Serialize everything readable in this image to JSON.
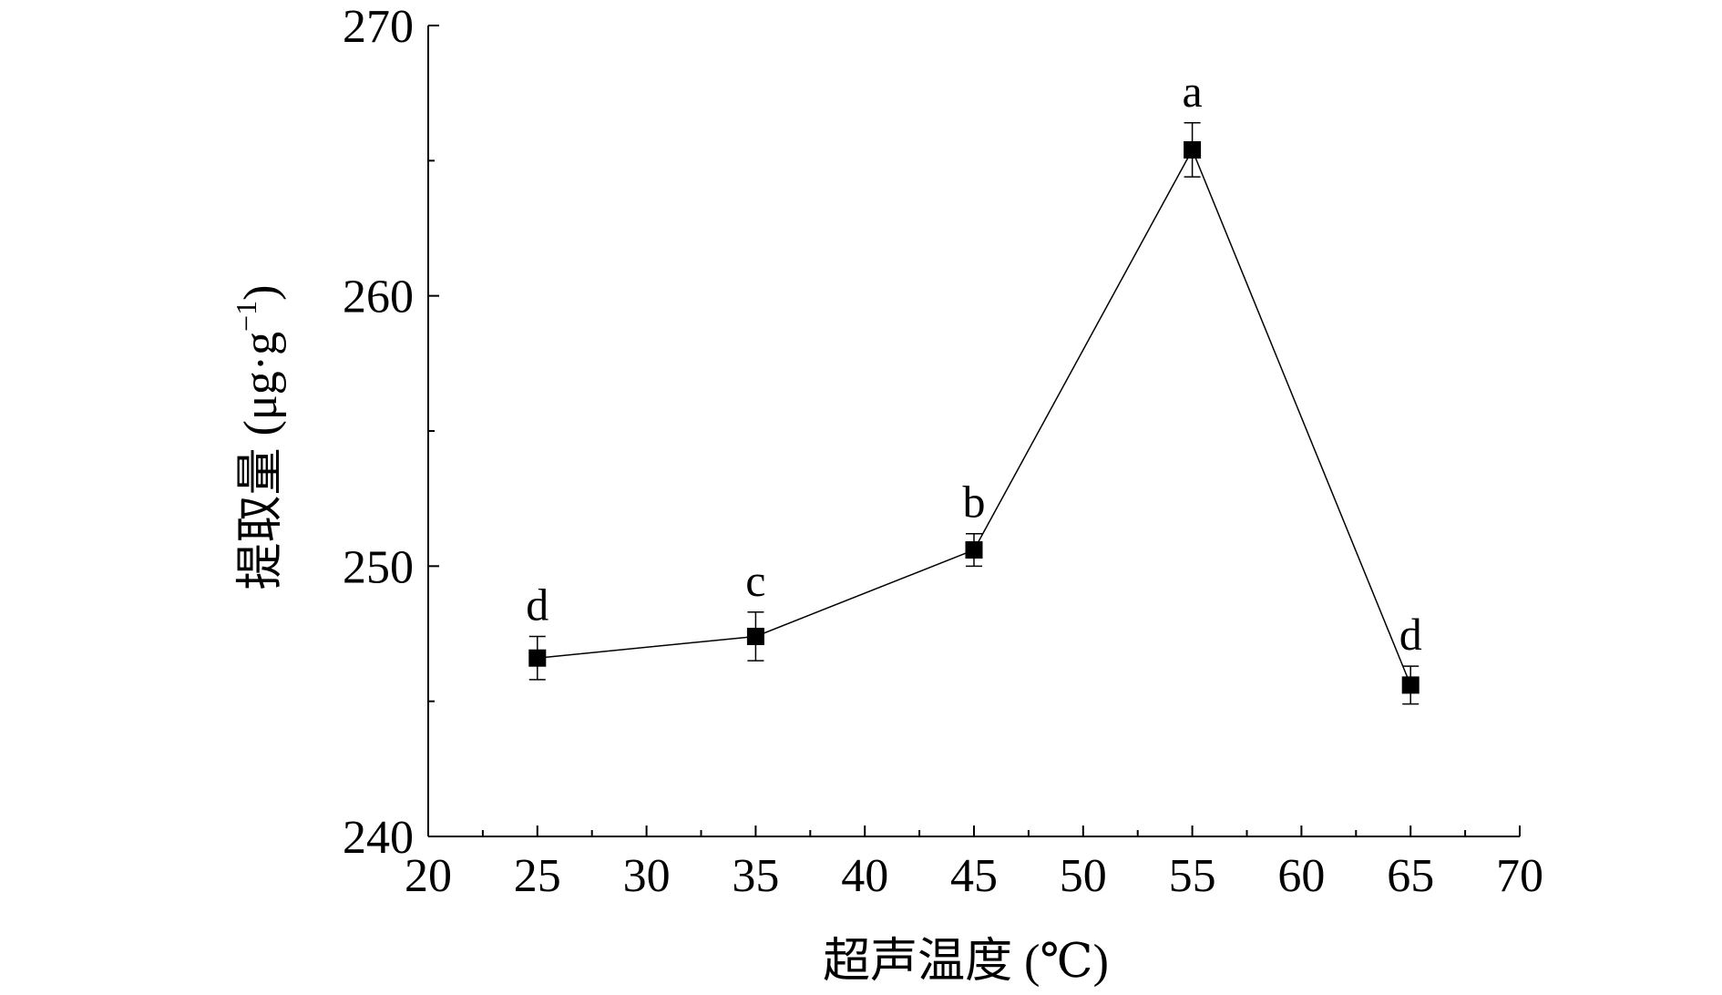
{
  "chart_data": {
    "type": "line",
    "xlabel": "超声温度 (℃)",
    "ylabel_main": "提取量 (μg·g",
    "ylabel_sup": "−1",
    "ylabel_close": ")",
    "xlim": [
      20,
      70
    ],
    "ylim": [
      240,
      270
    ],
    "x_ticks": [
      20,
      25,
      30,
      35,
      40,
      45,
      50,
      55,
      60,
      65,
      70
    ],
    "x_tick_labels": [
      "20",
      "25",
      "30",
      "35",
      "40",
      "45",
      "50",
      "55",
      "60",
      "65",
      "70"
    ],
    "x_minor_ticks": [
      22.5,
      27.5,
      32.5,
      37.5,
      42.5,
      47.5,
      52.5,
      57.5,
      62.5,
      67.5
    ],
    "y_ticks": [
      240,
      250,
      260,
      270
    ],
    "y_tick_labels": [
      "240",
      "250",
      "260",
      "270"
    ],
    "y_minor_ticks": [
      245,
      255,
      265
    ],
    "grid": false,
    "series": [
      {
        "x": [
          25,
          35,
          45,
          55,
          65
        ],
        "y": [
          246.6,
          247.4,
          250.6,
          265.4,
          245.6
        ],
        "error": [
          0.8,
          0.9,
          0.6,
          1.0,
          0.7
        ],
        "labels": [
          "d",
          "c",
          "b",
          "a",
          "d"
        ],
        "color": "#000000",
        "marker": "square"
      }
    ]
  }
}
